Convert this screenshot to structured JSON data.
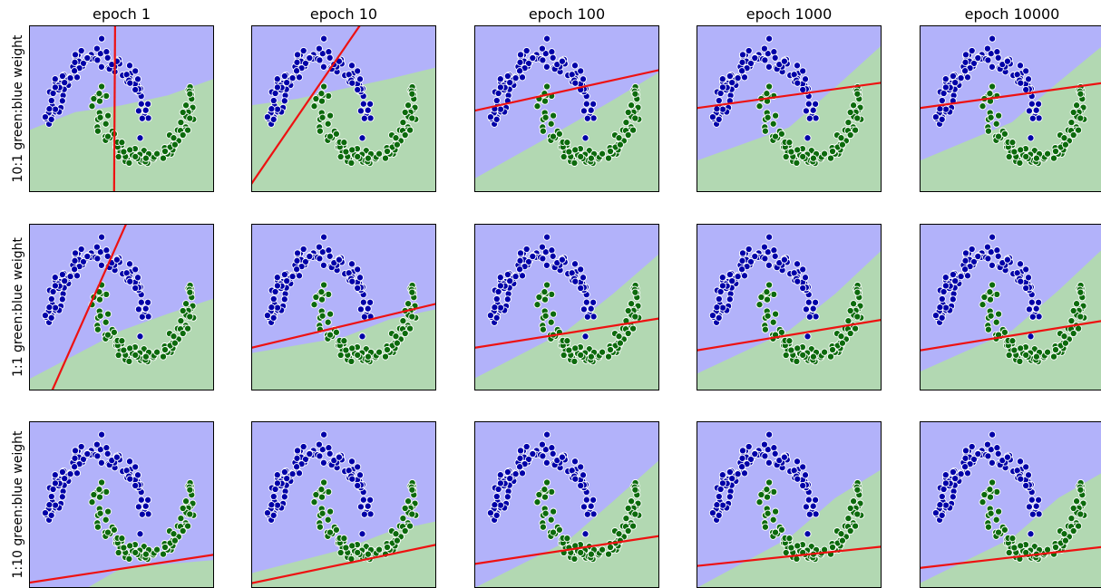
{
  "chart_data": {
    "type": "scatter",
    "column_titles": [
      "epoch 1",
      "epoch 10",
      "epoch 100",
      "epoch 1000",
      "epoch 10000"
    ],
    "row_labels": [
      "10:1 green:blue weight",
      "1:1 green:blue weight",
      "1:10 green:blue weight"
    ],
    "domain": {
      "x": [
        -1.5,
        2.5
      ],
      "y": [
        -1.0,
        1.5
      ]
    },
    "ticks": "none",
    "grid": false,
    "legend": "none",
    "colors": {
      "blue_region": "#b2b2fa",
      "green_region": "#b2d8b2",
      "blue_points": "#0000a8",
      "green_points": "#0c6a0c",
      "point_edge": "#ffffff",
      "line": "#ee1111",
      "frame": "#000000"
    },
    "moons_sample": {
      "upper_moon_center": [
        0,
        0
      ],
      "lower_moon_center": [
        1,
        0.5
      ],
      "radius": 1,
      "count_per_moon": 100,
      "noise": 0.08
    },
    "panels": [
      [
        {
          "line": [
            [
              0.36,
              1.5
            ],
            [
              0.34,
              -1.0
            ]
          ],
          "boundary": [
            [
              -1.5,
              -0.07
            ],
            [
              -0.5,
              0.2
            ],
            [
              0.5,
              0.3
            ],
            [
              1.5,
              0.45
            ],
            [
              2.5,
              0.7
            ]
          ]
        },
        {
          "line": [
            [
              -1.5,
              -0.88
            ],
            [
              0.85,
              1.5
            ]
          ],
          "boundary": [
            [
              -1.5,
              0.3
            ],
            [
              -0.5,
              0.4
            ],
            [
              0.5,
              0.55
            ],
            [
              1.5,
              0.7
            ],
            [
              2.5,
              0.87
            ]
          ]
        },
        {
          "line": [
            [
              -1.5,
              0.22
            ],
            [
              2.5,
              0.83
            ]
          ],
          "boundary": [
            [
              -1.5,
              -0.8
            ],
            [
              0.5,
              -0.02
            ],
            [
              1.5,
              0.38
            ],
            [
              2.5,
              0.8
            ]
          ]
        },
        {
          "line": [
            [
              -1.5,
              0.26
            ],
            [
              2.5,
              0.64
            ]
          ],
          "boundary": [
            [
              -1.5,
              -0.53
            ],
            [
              0.5,
              -0.03
            ],
            [
              1.5,
              0.57
            ],
            [
              2.5,
              1.2
            ]
          ]
        },
        {
          "line": [
            [
              -1.5,
              0.26
            ],
            [
              2.5,
              0.64
            ]
          ],
          "boundary": [
            [
              -1.5,
              -0.53
            ],
            [
              0.5,
              0.05
            ],
            [
              1.5,
              0.65
            ],
            [
              2.5,
              1.22
            ]
          ]
        }
      ],
      [
        {
          "line": [
            [
              -1.0,
              -1.0
            ],
            [
              0.6,
              1.5
            ]
          ],
          "boundary": [
            [
              -1.5,
              -0.83
            ],
            [
              0.5,
              -0.1
            ],
            [
              1.5,
              0.15
            ],
            [
              2.5,
              0.38
            ]
          ]
        },
        {
          "line": [
            [
              -1.5,
              -0.36
            ],
            [
              2.5,
              0.3
            ]
          ],
          "boundary": [
            [
              -1.5,
              -0.44
            ],
            [
              0.5,
              -0.2
            ],
            [
              1.5,
              0.07
            ],
            [
              2.5,
              0.22
            ]
          ]
        },
        {
          "line": [
            [
              -1.5,
              -0.36
            ],
            [
              2.5,
              0.08
            ]
          ],
          "boundary": [
            [
              -1.5,
              -0.82
            ],
            [
              0.5,
              -0.1
            ],
            [
              1.5,
              0.45
            ],
            [
              2.5,
              1.05
            ]
          ]
        },
        {
          "line": [
            [
              -1.5,
              -0.4
            ],
            [
              2.5,
              0.06
            ]
          ],
          "boundary": [
            [
              -1.5,
              -0.75
            ],
            [
              0.5,
              -0.1
            ],
            [
              1.5,
              0.45
            ],
            [
              2.5,
              1.1
            ]
          ]
        },
        {
          "line": [
            [
              -1.5,
              -0.4
            ],
            [
              2.5,
              0.05
            ]
          ],
          "boundary": [
            [
              -1.5,
              -0.72
            ],
            [
              0.5,
              -0.1
            ],
            [
              1.5,
              0.5
            ],
            [
              2.5,
              1.15
            ]
          ]
        }
      ],
      [
        {
          "line": [
            [
              -1.5,
              -0.92
            ],
            [
              2.5,
              -0.5
            ]
          ],
          "boundary": [
            [
              -1.5,
              -1.0
            ],
            [
              -0.25,
              -1.0
            ],
            [
              0.5,
              -0.7
            ],
            [
              2.5,
              -0.58
            ]
          ]
        },
        {
          "line": [
            [
              -1.5,
              -0.93
            ],
            [
              2.5,
              -0.35
            ]
          ],
          "boundary": [
            [
              -1.5,
              -0.78
            ],
            [
              0.5,
              -0.42
            ],
            [
              1.5,
              -0.15
            ],
            [
              2.5,
              0.0
            ]
          ]
        },
        {
          "line": [
            [
              -1.5,
              -0.64
            ],
            [
              2.5,
              -0.22
            ]
          ],
          "boundary": [
            [
              -1.5,
              -1.0
            ],
            [
              0.5,
              -0.3
            ],
            [
              1.5,
              0.3
            ],
            [
              2.5,
              0.92
            ]
          ]
        },
        {
          "line": [
            [
              -1.5,
              -0.67
            ],
            [
              2.5,
              -0.38
            ]
          ],
          "boundary": [
            [
              -1.5,
              -1.0
            ],
            [
              0.5,
              -0.25
            ],
            [
              1.5,
              0.35
            ],
            [
              2.5,
              0.78
            ]
          ]
        },
        {
          "line": [
            [
              -1.5,
              -0.7
            ],
            [
              2.5,
              -0.38
            ]
          ],
          "boundary": [
            [
              -1.5,
              -0.93
            ],
            [
              0.5,
              -0.25
            ],
            [
              1.5,
              0.35
            ],
            [
              2.5,
              0.75
            ]
          ]
        }
      ]
    ]
  }
}
